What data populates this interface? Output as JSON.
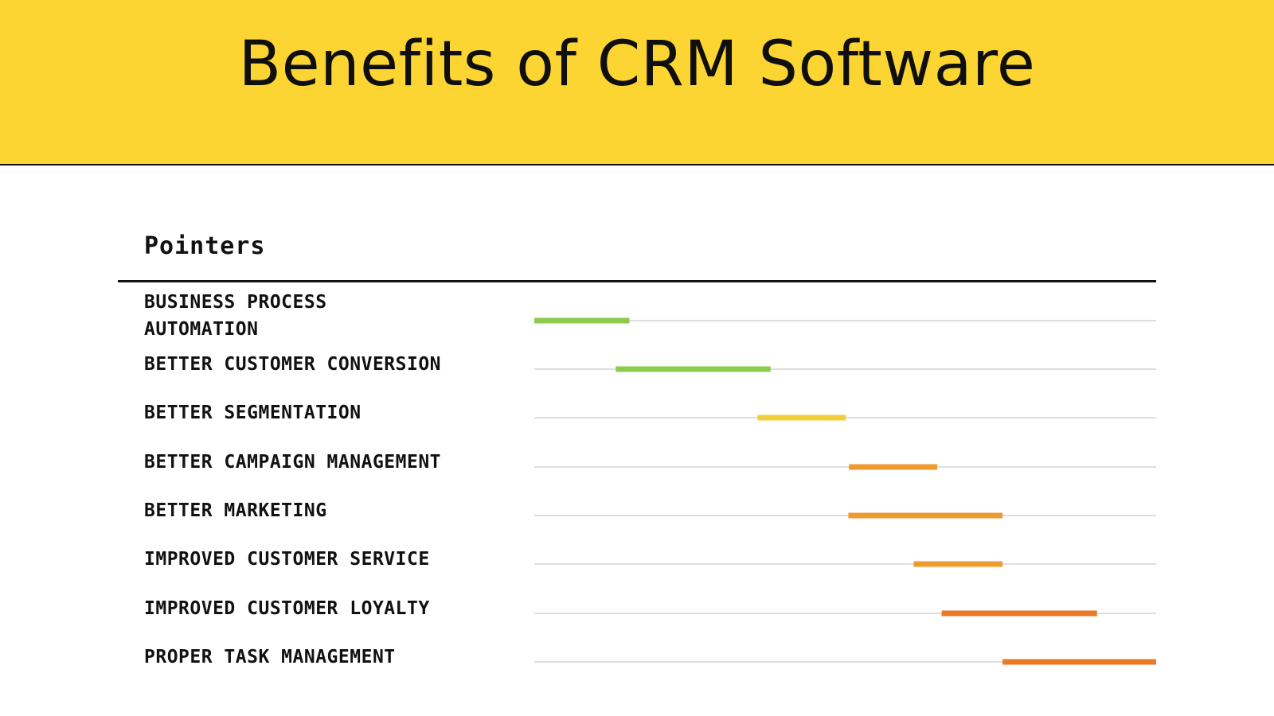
{
  "header": {
    "title": "Benefits of CRM Software",
    "background_color": "#FDD533"
  },
  "chart_data": {
    "type": "gantt",
    "column_heading": "Pointers",
    "x_range": [
      0,
      100
    ],
    "categories": [
      "BUSINESS PROCESS\nAUTOMATION",
      "BETTER CUSTOMER CONVERSION",
      "BETTER SEGMENTATION",
      "BETTER CAMPAIGN MANAGEMENT",
      "BETTER MARKETING",
      "IMPROVED CUSTOMER SERVICE",
      "IMPROVED CUSTOMER LOYALTY",
      "PROPER TASK MANAGEMENT"
    ],
    "bars": [
      {
        "start": 0.0,
        "end": 15.3,
        "color": "#8CCB4E"
      },
      {
        "start": 13.1,
        "end": 38.0,
        "color": "#8CCB4E"
      },
      {
        "start": 35.9,
        "end": 50.1,
        "color": "#F2CF3A"
      },
      {
        "start": 50.6,
        "end": 64.8,
        "color": "#EE9A2E"
      },
      {
        "start": 50.5,
        "end": 75.3,
        "color": "#EE9A2E"
      },
      {
        "start": 61.0,
        "end": 75.3,
        "color": "#EE9A2E"
      },
      {
        "start": 65.5,
        "end": 90.5,
        "color": "#EB7A24"
      },
      {
        "start": 75.3,
        "end": 100.0,
        "color": "#EB7A24"
      }
    ]
  }
}
